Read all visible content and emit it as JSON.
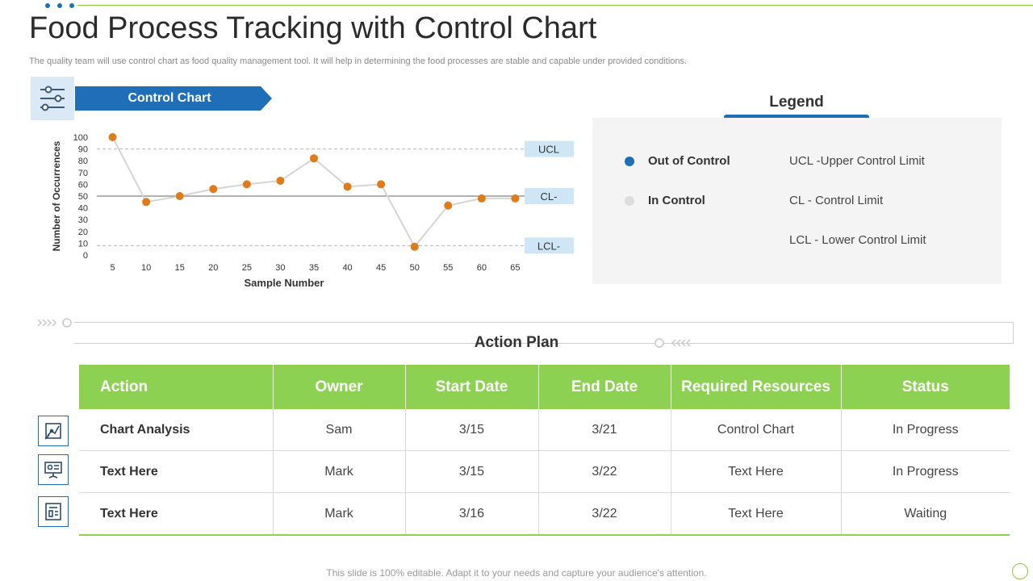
{
  "header": {
    "title": "Food Process Tracking with Control Chart",
    "subtitle": "The quality team will use control chart as food quality management tool. It will help in determining the food processes are stable and capable under provided conditions."
  },
  "chart_section": {
    "banner_label": "Control Chart"
  },
  "chart_data": {
    "type": "line",
    "title": "",
    "xlabel": "Sample Number",
    "ylabel": "Number of Occurrences",
    "x": [
      5,
      10,
      15,
      20,
      25,
      30,
      35,
      40,
      45,
      50,
      55,
      60,
      65
    ],
    "series": [
      {
        "values": [
          100,
          45,
          50,
          56,
          60,
          63,
          82,
          58,
          60,
          7,
          42,
          48,
          48
        ]
      }
    ],
    "xlim": [
      0,
      70
    ],
    "ylim": [
      0,
      100
    ],
    "yticks": [
      0,
      10,
      20,
      30,
      40,
      50,
      60,
      70,
      80,
      90,
      100
    ],
    "control_limits": [
      {
        "label": "UCL",
        "value": 90,
        "style": "dashed"
      },
      {
        "label": "CL-",
        "value": 50,
        "style": "solid"
      },
      {
        "label": "LCL-",
        "value": 8,
        "style": "dashed"
      }
    ],
    "grid": false,
    "colors": {
      "points": "#e07b1a",
      "line": "#d5d5d5",
      "limit_label_bg": "#cfe6f7"
    }
  },
  "legend": {
    "title": "Legend",
    "items": [
      {
        "label": "Out of Control",
        "color": "#1f6fb8"
      },
      {
        "label": "In Control",
        "color": "#dddddd"
      }
    ],
    "definitions": [
      "UCL -Upper Control Limit",
      "CL - Control Limit",
      "LCL - Lower Control Limit"
    ]
  },
  "action_plan": {
    "title": "Action Plan",
    "columns": [
      "Action",
      "Owner",
      "Start Date",
      "End Date",
      "Required Resources",
      "Status"
    ],
    "rows": [
      [
        "Chart Analysis",
        "Sam",
        "3/15",
        "3/21",
        "Control Chart",
        "In Progress"
      ],
      [
        "Text Here",
        "Mark",
        "3/15",
        "3/22",
        "Text Here",
        "In Progress"
      ],
      [
        "Text Here",
        "Mark",
        "3/16",
        "3/22",
        "Text Here",
        "Waiting"
      ]
    ],
    "row_icons": [
      "analysis-icon",
      "presentation-icon",
      "report-icon"
    ]
  },
  "footer": {
    "note": "This slide is 100% editable. Adapt it to your needs and capture your audience's attention."
  },
  "theme": {
    "accent_blue": "#1f6fb8",
    "accent_green": "#8dd152"
  }
}
